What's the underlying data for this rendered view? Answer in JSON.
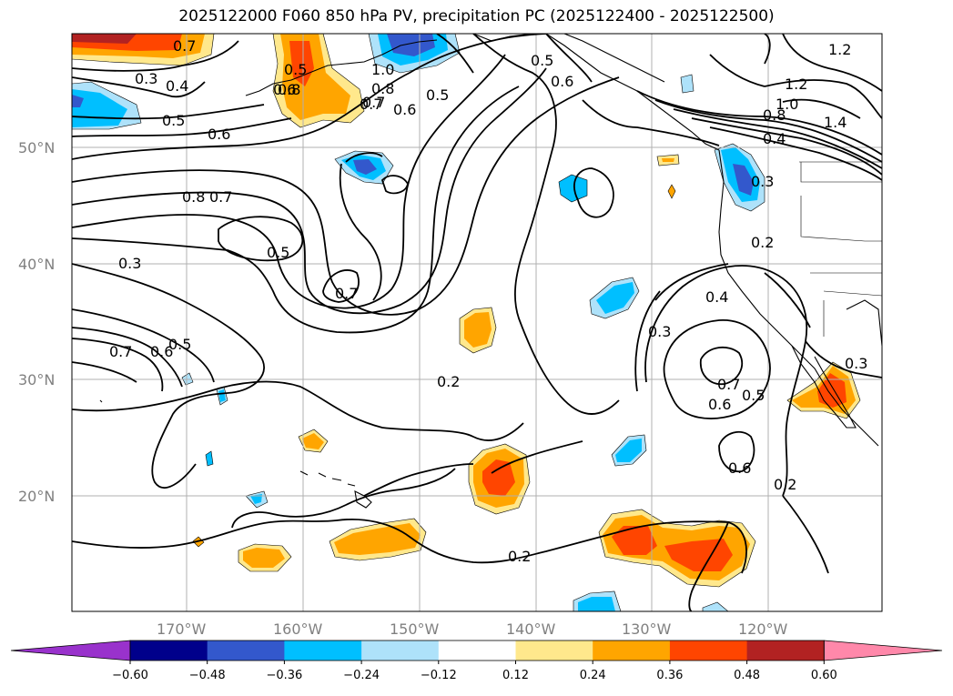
{
  "title": "2025122000 F060 850 hPa PV, precipitation PC (2025122400 - 2025122500)",
  "axes": {
    "lat_labels": [
      "50°N",
      "40°N",
      "30°N",
      "20°N"
    ],
    "lon_labels": [
      "170°W",
      "160°W",
      "150°W",
      "140°W",
      "130°W",
      "120°W"
    ]
  },
  "contour_labels": [
    "0.7",
    "0.5",
    "0.3",
    "0.4",
    "0.5",
    "0.6",
    "0.6",
    "0.8",
    "0.7",
    "1.0",
    "0.8",
    "0.7",
    "0.6",
    "0.5",
    "0.5",
    "0.6",
    "1.2",
    "1.0",
    "0.8",
    "1.4",
    "0.4",
    "1.2",
    "0.8",
    "0.7",
    "0.5",
    "0.3",
    "0.7",
    "0.5",
    "0.6",
    "0.7",
    "0.3",
    "0.2",
    "0.3",
    "0.4",
    "0.7",
    "0.6",
    "0.5",
    "0.6",
    "0.2",
    "0.3",
    "0.2",
    "0.2"
  ],
  "colorbar": {
    "ticks": [
      "−0.60",
      "−0.48",
      "−0.36",
      "−0.24",
      "−0.12",
      "0.12",
      "0.24",
      "0.36",
      "0.48",
      "0.60"
    ],
    "colors": [
      "#9932cc",
      "#00008b",
      "#3358cc",
      "#00bfff",
      "#aee2fa",
      "#ffffff",
      "#ffe88c",
      "#ffa500",
      "#ff4500",
      "#b22222",
      "#ff88aa"
    ]
  },
  "shading_colors": {
    "orange": "#ffa500",
    "red_orange": "#ff4500",
    "yellow": "#ffe88c",
    "dark_red": "#b22222",
    "sky": "#00bfff",
    "light_blue": "#aee2fa",
    "royal": "#3358cc"
  }
}
